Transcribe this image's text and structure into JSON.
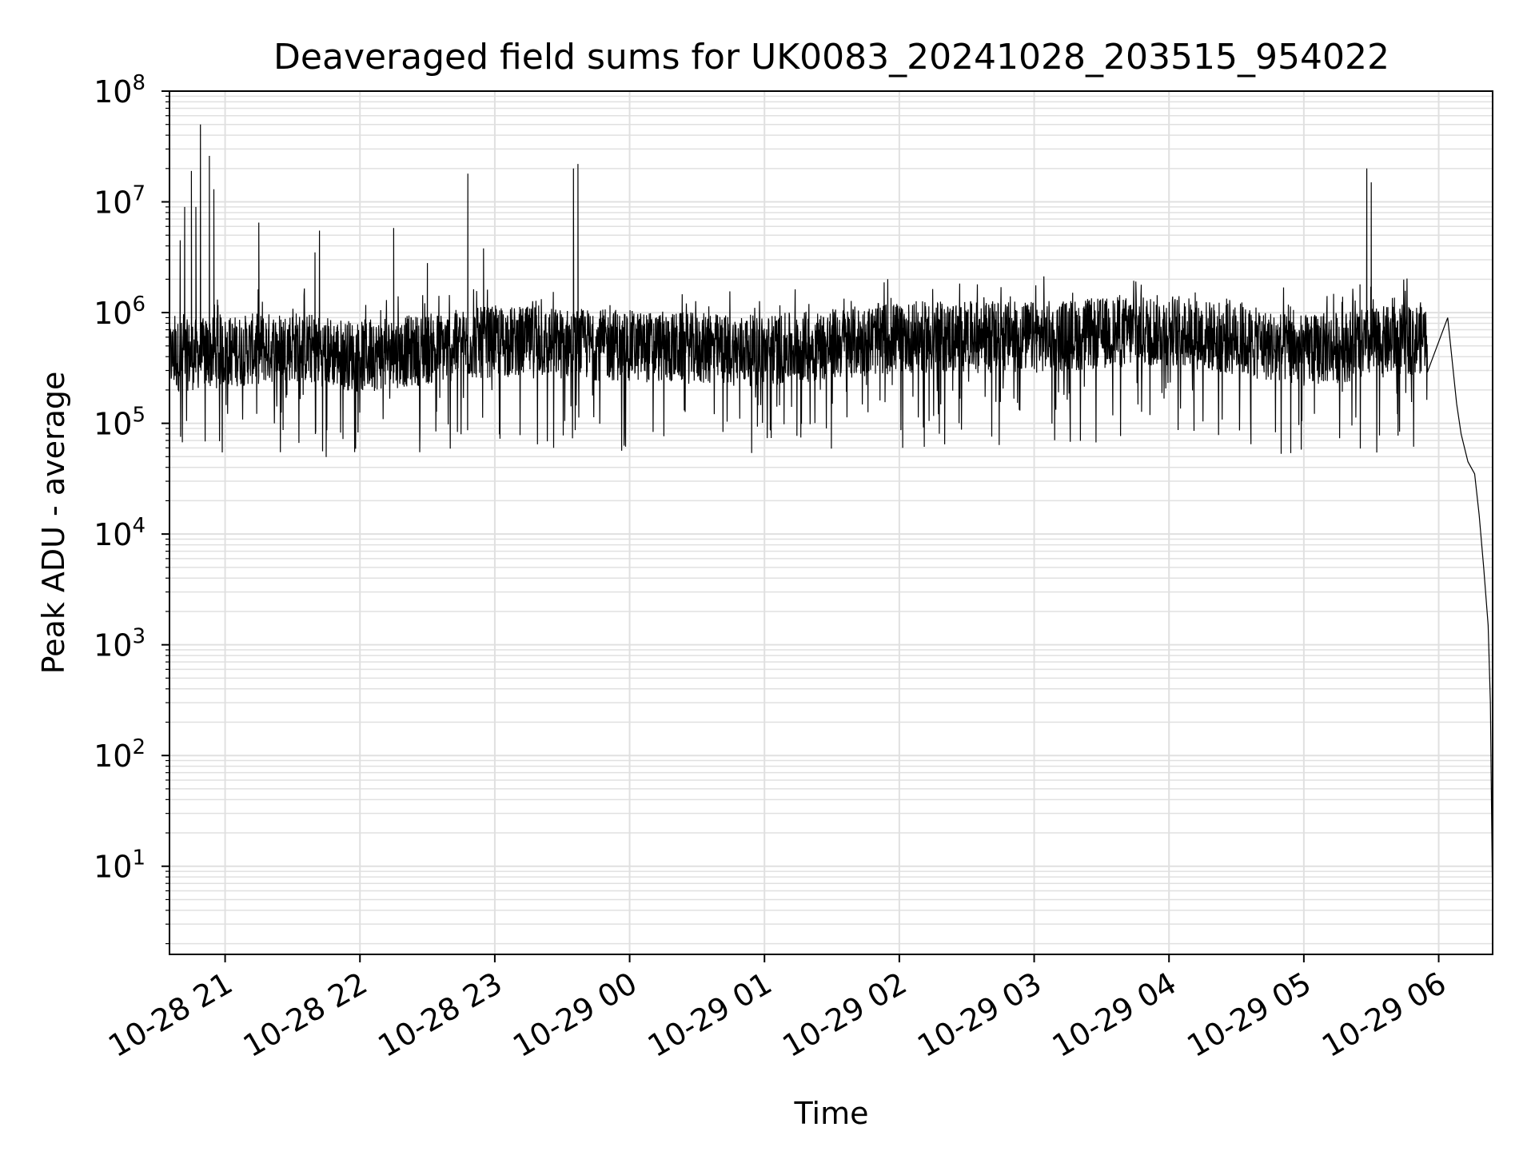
{
  "chart_data": {
    "type": "line",
    "title": "Deaveraged field sums for UK0083_20241028_203515_954022",
    "xlabel": "Time",
    "ylabel": "Peak ADU - average",
    "x_axis": {
      "kind": "date",
      "min": "2024-10-28T20:35:15",
      "max": "2024-10-29T06:24:00"
    },
    "y_axis": {
      "scale": "log",
      "min": 1.6,
      "max": 100000000.0
    },
    "x_tick_labels": [
      "10-28 21",
      "10-28 22",
      "10-28 23",
      "10-29 00",
      "10-29 01",
      "10-29 02",
      "10-29 03",
      "10-29 04",
      "10-29 05",
      "10-29 06"
    ],
    "x_tick_times": [
      "2024-10-28T21:00:00",
      "2024-10-28T22:00:00",
      "2024-10-28T23:00:00",
      "2024-10-29T00:00:00",
      "2024-10-29T01:00:00",
      "2024-10-29T02:00:00",
      "2024-10-29T03:00:00",
      "2024-10-29T04:00:00",
      "2024-10-29T05:00:00",
      "2024-10-29T06:00:00"
    ],
    "y_ticks": [
      {
        "value": 10,
        "base": "10",
        "exp": "1"
      },
      {
        "value": 100,
        "base": "10",
        "exp": "2"
      },
      {
        "value": 1000,
        "base": "10",
        "exp": "3"
      },
      {
        "value": 10000,
        "base": "10",
        "exp": "4"
      },
      {
        "value": 100000,
        "base": "10",
        "exp": "5"
      },
      {
        "value": 1000000,
        "base": "10",
        "exp": "6"
      },
      {
        "value": 10000000,
        "base": "10",
        "exp": "7"
      },
      {
        "value": 100000000,
        "base": "10",
        "exp": "8"
      }
    ],
    "grid": "on (major and minor)",
    "line_color": "#000000",
    "grid_color": "#e0e0e0",
    "series": [
      {
        "baseline_profile": [
          [
            "2024-10-28T20:35:15",
            400000
          ],
          [
            "2024-10-28T21:30:00",
            500000
          ],
          [
            "2024-10-28T22:00:00",
            400000
          ],
          [
            "2024-10-28T23:00:00",
            550000
          ],
          [
            "2024-10-29T00:00:00",
            500000
          ],
          [
            "2024-10-29T01:00:00",
            450000
          ],
          [
            "2024-10-29T02:00:00",
            600000
          ],
          [
            "2024-10-29T03:00:00",
            600000
          ],
          [
            "2024-10-29T04:00:00",
            700000
          ],
          [
            "2024-10-29T05:00:00",
            450000
          ],
          [
            "2024-10-29T05:55:00",
            600000
          ]
        ],
        "spikes": [
          [
            "2024-10-28T20:40:00",
            4500000
          ],
          [
            "2024-10-28T20:42:00",
            9000000
          ],
          [
            "2024-10-28T20:45:00",
            19000000
          ],
          [
            "2024-10-28T20:47:00",
            9000000
          ],
          [
            "2024-10-28T20:49:00",
            50000000
          ],
          [
            "2024-10-28T20:53:00",
            26000000
          ],
          [
            "2024-10-28T20:55:00",
            13000000
          ],
          [
            "2024-10-28T21:15:00",
            6500000
          ],
          [
            "2024-10-28T21:40:00",
            3500000
          ],
          [
            "2024-10-28T21:42:00",
            5500000
          ],
          [
            "2024-10-28T22:15:00",
            5800000
          ],
          [
            "2024-10-28T22:30:00",
            2800000
          ],
          [
            "2024-10-28T22:48:00",
            18000000
          ],
          [
            "2024-10-28T22:55:00",
            3800000
          ],
          [
            "2024-10-28T23:35:00",
            20000000
          ],
          [
            "2024-10-28T23:37:00",
            22000000
          ],
          [
            "2024-10-29T05:25:00",
            1800000
          ],
          [
            "2024-10-29T05:28:00",
            20000000
          ],
          [
            "2024-10-29T05:30:00",
            15000000
          ]
        ],
        "tail": [
          [
            "2024-10-29T06:04:00",
            900000
          ],
          [
            "2024-10-29T06:08:00",
            150000
          ],
          [
            "2024-10-29T06:10:00",
            80000
          ],
          [
            "2024-10-29T06:13:00",
            45000
          ],
          [
            "2024-10-29T06:16:00",
            35000
          ],
          [
            "2024-10-29T06:18:00",
            15000
          ],
          [
            "2024-10-29T06:20:00",
            5000
          ],
          [
            "2024-10-29T06:22:00",
            1500
          ],
          [
            "2024-10-29T06:23:00",
            300
          ],
          [
            "2024-10-29T06:24:00",
            4
          ]
        ]
      }
    ]
  }
}
